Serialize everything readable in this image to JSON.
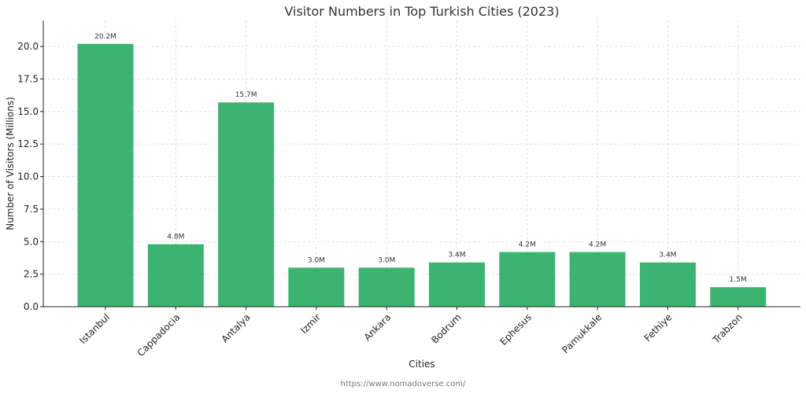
{
  "chart_data": {
    "type": "bar",
    "title": "Visitor Numbers in Top Turkish Cities (2023)",
    "xlabel": "Cities",
    "ylabel": "Number of Visitors (Millions)",
    "categories": [
      "Istanbul",
      "Cappadocia",
      "Antalya",
      "Izmir",
      "Ankara",
      "Bodrum",
      "Ephesus",
      "Pamukkale",
      "Fethiye",
      "Trabzon"
    ],
    "values": [
      20.2,
      4.8,
      15.7,
      3.0,
      3.0,
      3.4,
      4.2,
      4.2,
      3.4,
      1.5
    ],
    "data_labels": [
      "20.2M",
      "4.8M",
      "15.7M",
      "3.0M",
      "3.0M",
      "3.4M",
      "4.2M",
      "4.2M",
      "3.4M",
      "1.5M"
    ],
    "ylim": [
      0,
      22
    ],
    "yticks": [
      0,
      2.5,
      5,
      7.5,
      10,
      12.5,
      15,
      17.5,
      20
    ],
    "ytick_labels": [
      "0.0",
      "2.5",
      "5.0",
      "7.5",
      "10.0",
      "12.5",
      "15.0",
      "17.5",
      "20.0"
    ],
    "grid": true,
    "bar_color": "#3cb371"
  },
  "source": "https://www.nomadoverse.com/"
}
